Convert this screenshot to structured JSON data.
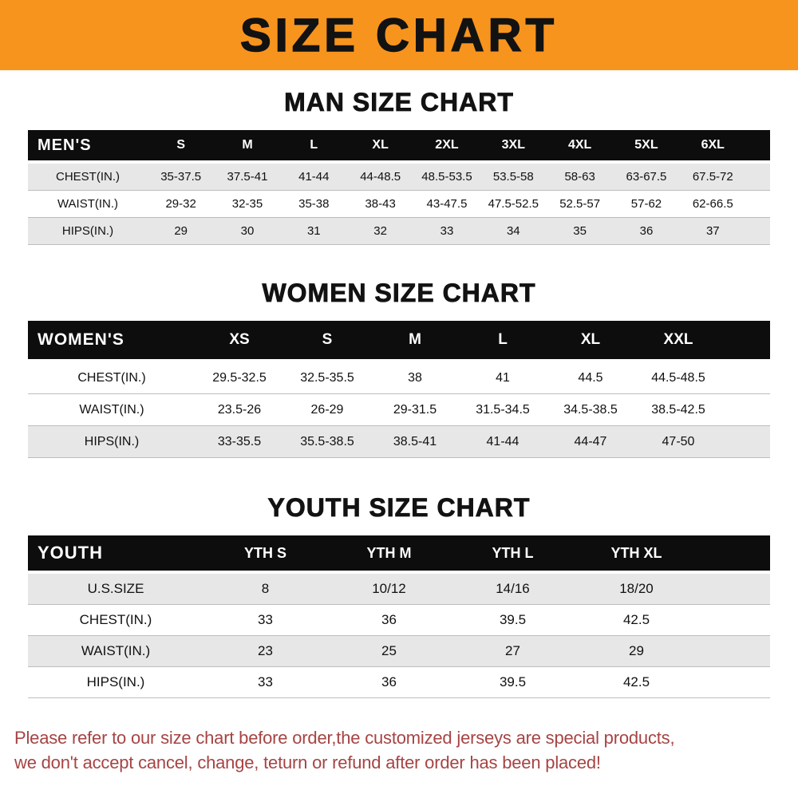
{
  "banner": {
    "title": "SIZE CHART"
  },
  "sections": {
    "men": {
      "heading": "MAN SIZE CHART",
      "corner": "MEN'S",
      "columns": [
        "S",
        "M",
        "L",
        "XL",
        "2XL",
        "3XL",
        "4XL",
        "5XL",
        "6XL"
      ],
      "rows": [
        {
          "label": "CHEST(IN.)",
          "values": [
            "35-37.5",
            "37.5-41",
            "41-44",
            "44-48.5",
            "48.5-53.5",
            "53.5-58",
            "58-63",
            "63-67.5",
            "67.5-72"
          ]
        },
        {
          "label": "WAIST(IN.)",
          "values": [
            "29-32",
            "32-35",
            "35-38",
            "38-43",
            "43-47.5",
            "47.5-52.5",
            "52.5-57",
            "57-62",
            "62-66.5"
          ]
        },
        {
          "label": "HIPS(IN.)",
          "values": [
            "29",
            "30",
            "31",
            "32",
            "33",
            "34",
            "35",
            "36",
            "37"
          ]
        }
      ]
    },
    "women": {
      "heading": "WOMEN SIZE CHART",
      "corner": "WOMEN'S",
      "columns": [
        "XS",
        "S",
        "M",
        "L",
        "XL",
        "XXL"
      ],
      "rows": [
        {
          "label": "CHEST(IN.)",
          "values": [
            "29.5-32.5",
            "32.5-35.5",
            "38",
            "41",
            "44.5",
            "44.5-48.5"
          ]
        },
        {
          "label": "WAIST(IN.)",
          "values": [
            "23.5-26",
            "26-29",
            "29-31.5",
            "31.5-34.5",
            "34.5-38.5",
            "38.5-42.5"
          ]
        },
        {
          "label": "HIPS(IN.)",
          "values": [
            "33-35.5",
            "35.5-38.5",
            "38.5-41",
            "41-44",
            "44-47",
            "47-50"
          ]
        }
      ]
    },
    "youth": {
      "heading": "YOUTH SIZE CHART",
      "corner": "YOUTH",
      "columns": [
        "YTH S",
        "YTH M",
        "YTH L",
        "YTH XL"
      ],
      "rows": [
        {
          "label": "U.S.SIZE",
          "values": [
            "8",
            "10/12",
            "14/16",
            "18/20"
          ]
        },
        {
          "label": "CHEST(IN.)",
          "values": [
            "33",
            "36",
            "39.5",
            "42.5"
          ]
        },
        {
          "label": "WAIST(IN.)",
          "values": [
            "23",
            "25",
            "27",
            "29"
          ]
        },
        {
          "label": "HIPS(IN.)",
          "values": [
            "33",
            "36",
            "39.5",
            "42.5"
          ]
        }
      ]
    }
  },
  "footer": {
    "line1": "Please refer to our size chart before order,the customized jerseys are special products,",
    "line2": "we don't accept cancel, change, teturn or refund after order has been placed!"
  },
  "colors": {
    "banner_bg": "#f7941e",
    "table_header_bg": "#0d0d0d",
    "row_stripe": "#e7e7e7",
    "footer_text": "#a64444"
  }
}
